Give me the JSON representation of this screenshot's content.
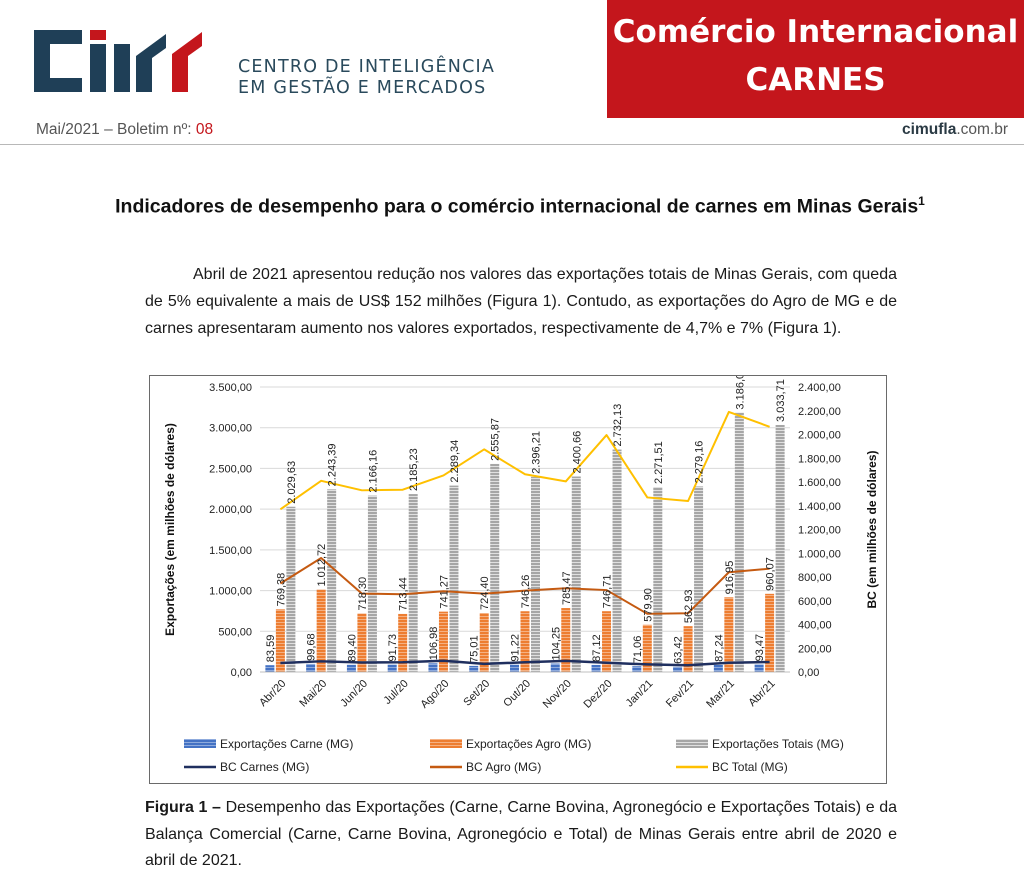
{
  "header": {
    "org_line1": "CENTRO DE INTELIGÊNCIA",
    "org_line2": "EM GESTÃO E MERCADOS",
    "banner_line1": "Comércio Internacional",
    "banner_line2": "CARNES",
    "bulletin_prefix": "Mai/2021 – Boletim nº: ",
    "bulletin_number": "08",
    "site_bold": "cimufla",
    "site_rest": ".com.br",
    "brand_colors": {
      "red": "#c4161c",
      "navy": "#1f3f57"
    }
  },
  "document": {
    "title": "Indicadores de desempenho para o comércio internacional de carnes em Minas Gerais",
    "title_footnote": "1",
    "paragraph": "Abril de 2021 apresentou redução nos valores das exportações totais de Minas Gerais, com queda de 5% equivalente a mais de US$ 152 milhões (Figura 1). Contudo, as exportações do Agro de MG e de carnes apresentaram aumento nos valores exportados, respectivamente de 4,7% e 7% (Figura 1).",
    "caption_label": "Figura 1 –",
    "caption_text": " Desempenho das Exportações (Carne, Carne Bovina, Agronegócio e Exportações Totais) e da Balança Comercial (Carne, Carne Bovina, Agronegócio e Total) de Minas Gerais entre abril de 2020 e abril de 2021."
  },
  "chart_data": {
    "type": "bar",
    "categories": [
      "Abr/20",
      "Mai/20",
      "Jun/20",
      "Jul/20",
      "Ago/20",
      "Set/20",
      "Out/20",
      "Nov/20",
      "Dez/20",
      "Jan/21",
      "Fev/21",
      "Mar/21",
      "Abr/21"
    ],
    "ylabel": "Exportações (em milhões de dólares)",
    "y2label": "BC (em milhões de dólares)",
    "ylim": [
      0,
      3500
    ],
    "y2lim": [
      0,
      2400
    ],
    "yticks": [
      "0,00",
      "500,00",
      "1.000,00",
      "1.500,00",
      "2.000,00",
      "2.500,00",
      "3.000,00",
      "3.500,00"
    ],
    "y2ticks": [
      "0,00",
      "200,00",
      "400,00",
      "600,00",
      "800,00",
      "1.000,00",
      "1.200,00",
      "1.400,00",
      "1.600,00",
      "1.800,00",
      "2.000,00",
      "2.200,00",
      "2.400,00"
    ],
    "grid": true,
    "legend_position": "bottom",
    "bar_series": [
      {
        "name": "Exportações Carne (MG)",
        "color": "#4472c4",
        "values": [
          83.59,
          99.68,
          89.4,
          91.73,
          106.98,
          75.01,
          91.22,
          104.25,
          87.12,
          71.06,
          63.42,
          87.24,
          93.47
        ],
        "labels": [
          "83,59",
          "99,68",
          "89,40",
          "91,73",
          "106,98",
          "75,01",
          "91,22",
          "104,25",
          "87,12",
          "71,06",
          "63,42",
          "87,24",
          "93,47"
        ]
      },
      {
        "name": "Exportações Agro (MG)",
        "color": "#ed7d31",
        "values": [
          769.38,
          1012.72,
          718.3,
          713.44,
          741.27,
          724.4,
          746.26,
          785.47,
          746.71,
          579.9,
          562.93,
          916.95,
          960.07
        ],
        "labels": [
          "769,38",
          "1.012,72",
          "718,30",
          "713,44",
          "741,27",
          "724,40",
          "746,26",
          "785,47",
          "746,71",
          "579,90",
          "562,93",
          "916,95",
          "960,07"
        ]
      },
      {
        "name": "Exportações Totais (MG)",
        "color": "#a6a6a6",
        "values": [
          2029.63,
          2243.39,
          2166.16,
          2185.23,
          2289.34,
          2555.87,
          2396.21,
          2400.66,
          2732.13,
          2271.51,
          2279.16,
          3186.02,
          3033.71
        ],
        "labels": [
          "2.029,63",
          "2.243,39",
          "2.166,16",
          "2.185,23",
          "2.289,34",
          "2.555,87",
          "2.396,21",
          "2.400,66",
          "2.732,13",
          "2.271,51",
          "2.279,16",
          "3.186,02",
          "3.033,71"
        ]
      }
    ],
    "line_series": [
      {
        "name": "BC Carnes (MG)",
        "color": "#1f2f5f",
        "values": [
          76,
          90,
          80,
          82,
          95,
          68,
          82,
          94,
          78,
          64,
          57,
          78,
          84
        ]
      },
      {
        "name": "BC Agro (MG)",
        "color": "#c55a11",
        "values": [
          745,
          960,
          660,
          655,
          680,
          660,
          685,
          705,
          690,
          490,
          495,
          840,
          870
        ]
      },
      {
        "name": "BC Total (MG)",
        "color": "#ffc000",
        "values": [
          1370,
          1610,
          1530,
          1535,
          1655,
          1875,
          1665,
          1605,
          1995,
          1470,
          1440,
          2190,
          2065
        ]
      }
    ]
  }
}
